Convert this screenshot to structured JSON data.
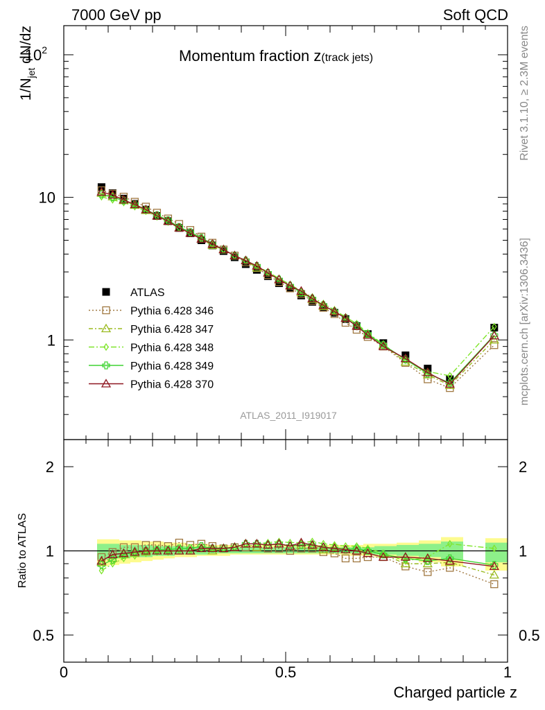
{
  "header": {
    "left": "7000 GeV pp",
    "right": "Soft QCD"
  },
  "side_text": {
    "rivet": "Rivet 3.1.10, ≥ 2.3M events",
    "mcplots": "mcplots.cern.ch [arXiv:1306.3436]"
  },
  "chart_data": [
    {
      "type": "line",
      "title": "Momentum fraction z",
      "title_suffix": "(track jets)",
      "ylabel_main": "1/N",
      "ylabel_sub": "jet",
      "ylabel_tail": " dN/dz",
      "ylabel": "1/N_jet dN/dz",
      "xlim": [
        0,
        1
      ],
      "ylim": [
        0.2,
        160
      ],
      "yscale": "log",
      "ytick_labels": [
        {
          "value": 1,
          "label": "1",
          "sup": ""
        },
        {
          "value": 10,
          "label": "10",
          "sup": ""
        },
        {
          "value": 100,
          "label": "10",
          "sup": "2"
        }
      ],
      "analysis_id": "ATLAS_2011_I919017",
      "legend_position": "lower-left",
      "x": [
        0.085,
        0.11,
        0.135,
        0.16,
        0.185,
        0.21,
        0.235,
        0.26,
        0.285,
        0.31,
        0.335,
        0.36,
        0.385,
        0.41,
        0.435,
        0.46,
        0.485,
        0.51,
        0.535,
        0.56,
        0.585,
        0.61,
        0.635,
        0.66,
        0.685,
        0.72,
        0.77,
        0.82,
        0.87,
        0.97
      ],
      "series": [
        {
          "name": "ATLAS",
          "color": "#000000",
          "marker": "square-filled",
          "values": [
            11.8,
            10.7,
            9.8,
            9.0,
            8.2,
            7.4,
            6.8,
            6.1,
            5.6,
            5.0,
            4.6,
            4.2,
            3.8,
            3.4,
            3.1,
            2.8,
            2.5,
            2.3,
            2.05,
            1.85,
            1.7,
            1.55,
            1.4,
            1.25,
            1.1,
            0.95,
            0.78,
            0.63,
            0.53,
            1.22
          ]
        },
        {
          "name": "Pythia 6.428 346",
          "color": "#a07841",
          "marker": "square-open",
          "dash": "2,3",
          "values": [
            11.2,
            10.6,
            10.1,
            9.3,
            8.6,
            7.8,
            7.1,
            6.5,
            5.9,
            5.3,
            4.8,
            4.3,
            3.9,
            3.5,
            3.2,
            2.85,
            2.55,
            2.3,
            2.1,
            1.88,
            1.68,
            1.52,
            1.32,
            1.18,
            1.05,
            0.9,
            0.69,
            0.53,
            0.46,
            0.92
          ]
        },
        {
          "name": "Pythia 6.428 347",
          "color": "#9aba1f",
          "marker": "triangle-open",
          "dash": "6,3,2,3",
          "values": [
            10.7,
            10.1,
            9.5,
            8.8,
            8.1,
            7.4,
            6.8,
            6.1,
            5.6,
            5.1,
            4.6,
            4.3,
            3.9,
            3.6,
            3.2,
            2.95,
            2.65,
            2.4,
            2.15,
            1.93,
            1.72,
            1.6,
            1.42,
            1.25,
            1.1,
            0.92,
            0.7,
            0.57,
            0.48,
            1.0
          ]
        },
        {
          "name": "Pythia 6.428 348",
          "color": "#7fe52a",
          "marker": "diamond-open",
          "dash": "8,3,2,3",
          "values": [
            10.1,
            9.6,
            9.2,
            8.6,
            8.0,
            7.3,
            6.7,
            6.1,
            5.6,
            5.1,
            4.7,
            4.3,
            3.9,
            3.6,
            3.3,
            3.0,
            2.7,
            2.45,
            2.2,
            2.0,
            1.8,
            1.62,
            1.45,
            1.3,
            1.12,
            0.93,
            0.72,
            0.6,
            0.56,
            1.24
          ]
        },
        {
          "name": "Pythia 6.428 349",
          "color": "#3ed432",
          "marker": "cross-open",
          "dash": "",
          "values": [
            10.5,
            10.0,
            9.5,
            8.9,
            8.2,
            7.5,
            6.9,
            6.2,
            5.7,
            5.2,
            4.7,
            4.3,
            3.9,
            3.6,
            3.3,
            2.95,
            2.65,
            2.4,
            2.15,
            1.95,
            1.75,
            1.58,
            1.42,
            1.27,
            1.1,
            0.92,
            0.73,
            0.58,
            0.5,
            1.08
          ]
        },
        {
          "name": "Pythia 6.428 370",
          "color": "#8e1620",
          "marker": "triangle-open",
          "dash": "",
          "values": [
            10.9,
            10.4,
            9.6,
            8.9,
            8.2,
            7.4,
            6.8,
            6.1,
            5.6,
            5.1,
            4.7,
            4.3,
            3.9,
            3.6,
            3.3,
            2.95,
            2.65,
            2.4,
            2.2,
            1.95,
            1.75,
            1.58,
            1.42,
            1.25,
            1.08,
            0.9,
            0.74,
            0.59,
            0.49,
            1.07
          ]
        }
      ]
    },
    {
      "type": "line",
      "ylabel": "Ratio to ATLAS",
      "xlabel": "Charged particle z",
      "xlim": [
        0,
        1
      ],
      "ylim": [
        0.4,
        2.5
      ],
      "yscale": "log",
      "xtick_labels": [
        {
          "value": 0,
          "label": "0"
        },
        {
          "value": 0.5,
          "label": "0.5"
        },
        {
          "value": 1,
          "label": "1"
        }
      ],
      "ytick_labels": [
        {
          "value": 0.5,
          "label": "0.5"
        },
        {
          "value": 1,
          "label": "1"
        },
        {
          "value": 2,
          "label": "2"
        }
      ],
      "band_bins": [
        {
          "lo": 0.075,
          "hi": 0.1,
          "yellow": [
            0.88,
            1.1
          ],
          "green": [
            0.93,
            1.06
          ]
        },
        {
          "lo": 0.1,
          "hi": 0.125,
          "yellow": [
            0.89,
            1.1
          ],
          "green": [
            0.94,
            1.06
          ]
        },
        {
          "lo": 0.125,
          "hi": 0.15,
          "yellow": [
            0.9,
            1.09
          ],
          "green": [
            0.94,
            1.05
          ]
        },
        {
          "lo": 0.15,
          "hi": 0.175,
          "yellow": [
            0.91,
            1.09
          ],
          "green": [
            0.95,
            1.05
          ]
        },
        {
          "lo": 0.175,
          "hi": 0.2,
          "yellow": [
            0.92,
            1.08
          ],
          "green": [
            0.95,
            1.05
          ]
        },
        {
          "lo": 0.2,
          "hi": 0.225,
          "yellow": [
            0.93,
            1.08
          ],
          "green": [
            0.96,
            1.04
          ]
        },
        {
          "lo": 0.225,
          "hi": 0.25,
          "yellow": [
            0.94,
            1.07
          ],
          "green": [
            0.96,
            1.04
          ]
        },
        {
          "lo": 0.25,
          "hi": 0.275,
          "yellow": [
            0.95,
            1.07
          ],
          "green": [
            0.97,
            1.04
          ]
        },
        {
          "lo": 0.275,
          "hi": 0.3,
          "yellow": [
            0.95,
            1.06
          ],
          "green": [
            0.97,
            1.03
          ]
        },
        {
          "lo": 0.3,
          "hi": 0.325,
          "yellow": [
            0.96,
            1.06
          ],
          "green": [
            0.97,
            1.03
          ]
        },
        {
          "lo": 0.325,
          "hi": 0.35,
          "yellow": [
            0.96,
            1.05
          ],
          "green": [
            0.98,
            1.03
          ]
        },
        {
          "lo": 0.35,
          "hi": 0.375,
          "yellow": [
            0.96,
            1.05
          ],
          "green": [
            0.98,
            1.03
          ]
        },
        {
          "lo": 0.375,
          "hi": 0.4,
          "yellow": [
            0.97,
            1.05
          ],
          "green": [
            0.98,
            1.03
          ]
        },
        {
          "lo": 0.4,
          "hi": 0.425,
          "yellow": [
            0.97,
            1.05
          ],
          "green": [
            0.98,
            1.03
          ]
        },
        {
          "lo": 0.425,
          "hi": 0.45,
          "yellow": [
            0.97,
            1.05
          ],
          "green": [
            0.98,
            1.03
          ]
        },
        {
          "lo": 0.45,
          "hi": 0.475,
          "yellow": [
            0.97,
            1.05
          ],
          "green": [
            0.98,
            1.03
          ]
        },
        {
          "lo": 0.475,
          "hi": 0.5,
          "yellow": [
            0.97,
            1.05
          ],
          "green": [
            0.98,
            1.03
          ]
        },
        {
          "lo": 0.5,
          "hi": 0.525,
          "yellow": [
            0.97,
            1.05
          ],
          "green": [
            0.98,
            1.03
          ]
        },
        {
          "lo": 0.525,
          "hi": 0.55,
          "yellow": [
            0.97,
            1.05
          ],
          "green": [
            0.98,
            1.03
          ]
        },
        {
          "lo": 0.55,
          "hi": 0.575,
          "yellow": [
            0.97,
            1.05
          ],
          "green": [
            0.98,
            1.03
          ]
        },
        {
          "lo": 0.575,
          "hi": 0.6,
          "yellow": [
            0.97,
            1.05
          ],
          "green": [
            0.98,
            1.03
          ]
        },
        {
          "lo": 0.6,
          "hi": 0.625,
          "yellow": [
            0.97,
            1.05
          ],
          "green": [
            0.98,
            1.03
          ]
        },
        {
          "lo": 0.625,
          "hi": 0.65,
          "yellow": [
            0.96,
            1.05
          ],
          "green": [
            0.98,
            1.03
          ]
        },
        {
          "lo": 0.65,
          "hi": 0.675,
          "yellow": [
            0.96,
            1.05
          ],
          "green": [
            0.98,
            1.03
          ]
        },
        {
          "lo": 0.675,
          "hi": 0.7,
          "yellow": [
            0.96,
            1.06
          ],
          "green": [
            0.97,
            1.03
          ]
        },
        {
          "lo": 0.7,
          "hi": 0.75,
          "yellow": [
            0.95,
            1.06
          ],
          "green": [
            0.97,
            1.04
          ]
        },
        {
          "lo": 0.75,
          "hi": 0.8,
          "yellow": [
            0.93,
            1.07
          ],
          "green": [
            0.96,
            1.05
          ]
        },
        {
          "lo": 0.8,
          "hi": 0.85,
          "yellow": [
            0.91,
            1.09
          ],
          "green": [
            0.95,
            1.06
          ]
        },
        {
          "lo": 0.85,
          "hi": 0.9,
          "yellow": [
            0.88,
            1.12
          ],
          "green": [
            0.93,
            1.08
          ]
        },
        {
          "lo": 0.95,
          "hi": 1.0,
          "yellow": [
            0.85,
            1.11
          ],
          "green": [
            0.91,
            1.07
          ]
        }
      ],
      "series": [
        {
          "name": "Pythia 6.428 346",
          "values": [
            0.95,
            0.99,
            1.03,
            1.03,
            1.05,
            1.05,
            1.04,
            1.07,
            1.05,
            1.06,
            1.04,
            1.02,
            1.03,
            1.03,
            1.03,
            1.02,
            1.02,
            1.0,
            1.02,
            1.02,
            0.99,
            0.98,
            0.94,
            0.94,
            0.95,
            0.95,
            0.88,
            0.84,
            0.87,
            0.76
          ]
        },
        {
          "name": "Pythia 6.428 347",
          "values": [
            0.91,
            0.94,
            0.97,
            0.98,
            0.99,
            1.0,
            1.0,
            1.0,
            1.0,
            1.02,
            1.0,
            1.02,
            1.03,
            1.06,
            1.03,
            1.05,
            1.06,
            1.04,
            1.05,
            1.04,
            1.01,
            1.03,
            1.01,
            1.0,
            1.0,
            0.97,
            0.9,
            0.9,
            0.91,
            0.82
          ]
        },
        {
          "name": "Pythia 6.428 348",
          "values": [
            0.85,
            0.9,
            0.94,
            0.96,
            0.98,
            0.99,
            0.99,
            1.0,
            1.0,
            1.02,
            1.02,
            1.02,
            1.03,
            1.06,
            1.06,
            1.07,
            1.08,
            1.07,
            1.07,
            1.08,
            1.06,
            1.05,
            1.04,
            1.04,
            1.02,
            0.98,
            0.92,
            0.95,
            1.06,
            1.02
          ]
        },
        {
          "name": "Pythia 6.428 349",
          "values": [
            0.89,
            0.93,
            0.97,
            0.99,
            1.0,
            1.01,
            1.01,
            1.02,
            1.02,
            1.04,
            1.02,
            1.02,
            1.03,
            1.06,
            1.06,
            1.05,
            1.06,
            1.04,
            1.05,
            1.05,
            1.03,
            1.02,
            1.01,
            1.02,
            1.0,
            0.97,
            0.94,
            0.92,
            0.94,
            0.89
          ]
        },
        {
          "name": "Pythia 6.428 370",
          "values": [
            0.92,
            0.97,
            0.98,
            0.99,
            1.0,
            1.0,
            1.0,
            1.0,
            1.0,
            1.02,
            1.02,
            1.02,
            1.03,
            1.06,
            1.06,
            1.05,
            1.06,
            1.04,
            1.07,
            1.05,
            1.03,
            1.02,
            1.01,
            1.0,
            0.98,
            0.95,
            0.95,
            0.94,
            0.92,
            0.88
          ]
        }
      ]
    }
  ]
}
